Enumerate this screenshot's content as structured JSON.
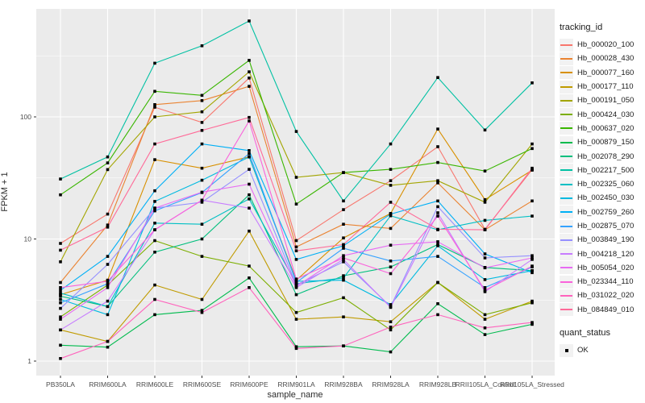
{
  "chart_data": {
    "type": "line",
    "title": "",
    "xlabel": "sample_name",
    "ylabel": "FPKM + 1",
    "y_scale": "log10",
    "y_ticks": [
      1,
      10,
      100
    ],
    "y_minor_ticks": [
      3.1623,
      31.623,
      316.23
    ],
    "ylim_log": [
      0.88,
      950
    ],
    "grid": "on",
    "legend_position": "right",
    "marker": "black-square",
    "categories": [
      "PB350LA",
      "RRIM600LA",
      "RRIM600LE",
      "RRIM600SE",
      "RRIM600PE",
      "RRIM901LA",
      "RRIM928BA",
      "RRIM928LA",
      "RRIM928LB",
      "RRII105LA_Control",
      "RRII105LA_Stressed"
    ],
    "series": [
      {
        "name": "Hb_000020_100",
        "color": "#F8766D",
        "values": [
          9.2,
          16,
          120,
          90,
          208,
          9.7,
          17.4,
          30,
          57,
          12,
          37
        ]
      },
      {
        "name": "Hb_000028_430",
        "color": "#EA8331",
        "values": [
          4.4,
          13,
          126,
          136,
          178,
          8.6,
          13.2,
          12.2,
          28.8,
          11.9,
          20.5
        ]
      },
      {
        "name": "Hb_000077_160",
        "color": "#D89000",
        "values": [
          3.5,
          4.6,
          44.6,
          38,
          47,
          4.6,
          10.2,
          16.2,
          79.5,
          21,
          36.6
        ]
      },
      {
        "name": "Hb_000177_110",
        "color": "#C09B00",
        "values": [
          1.8,
          1.45,
          4.2,
          3.2,
          11.6,
          2.2,
          2.3,
          2.1,
          4.4,
          2.2,
          3.1
        ]
      },
      {
        "name": "Hb_000191_050",
        "color": "#A3A500",
        "values": [
          6.5,
          37,
          100,
          110,
          234,
          32,
          35,
          27.5,
          30,
          20,
          60
        ]
      },
      {
        "name": "Hb_000424_030",
        "color": "#7CAE00",
        "values": [
          2.3,
          4.2,
          9.7,
          7.2,
          6.0,
          2.5,
          3.3,
          1.8,
          4.4,
          2.4,
          3.0
        ]
      },
      {
        "name": "Hb_000637_020",
        "color": "#39B600",
        "values": [
          23,
          42,
          162,
          150,
          290,
          19.3,
          35,
          37.2,
          42.3,
          36,
          55
        ]
      },
      {
        "name": "Hb_000879_150",
        "color": "#00BB4E",
        "values": [
          1.35,
          1.3,
          2.4,
          2.6,
          4.8,
          1.31,
          1.33,
          1.19,
          2.95,
          1.65,
          2.0
        ]
      },
      {
        "name": "Hb_002078_290",
        "color": "#00BF7D",
        "values": [
          3.4,
          2.8,
          7.8,
          10,
          23,
          3.5,
          5.0,
          5.9,
          9.0,
          5.85,
          5.5
        ]
      },
      {
        "name": "Hb_002217_500",
        "color": "#00C1A3",
        "values": [
          31,
          47,
          275,
          382,
          610,
          76,
          20.5,
          60,
          210,
          78,
          190
        ]
      },
      {
        "name": "Hb_002325_060",
        "color": "#00BFC4",
        "values": [
          3.6,
          2.8,
          13.5,
          13.2,
          21.3,
          4.3,
          4.8,
          15.5,
          11.9,
          14.2,
          15.4
        ]
      },
      {
        "name": "Hb_002450_030",
        "color": "#00BAE0",
        "values": [
          3.2,
          2.4,
          20.3,
          30.3,
          47,
          4.5,
          4.6,
          2.9,
          8.8,
          4.65,
          5.5
        ]
      },
      {
        "name": "Hb_002759_260",
        "color": "#00B0F6",
        "values": [
          3.8,
          7.2,
          24.8,
          60,
          53,
          6.8,
          8.8,
          16,
          20.5,
          7.55,
          5.3
        ]
      },
      {
        "name": "Hb_002875_070",
        "color": "#35A2FF",
        "values": [
          3.0,
          4.3,
          17,
          24,
          50,
          4.4,
          8.4,
          6.6,
          7.2,
          4.0,
          5.9
        ]
      },
      {
        "name": "Hb_003849_190",
        "color": "#9590FF",
        "values": [
          2.7,
          6.2,
          17.9,
          20,
          37.2,
          4.2,
          6.5,
          2.8,
          18.4,
          7.0,
          7.3
        ]
      },
      {
        "name": "Hb_004218_120",
        "color": "#C77CFF",
        "values": [
          1.8,
          3.1,
          11.9,
          20.8,
          17.9,
          4.0,
          6.8,
          2.75,
          16.4,
          3.7,
          6.8
        ]
      },
      {
        "name": "Hb_005054_020",
        "color": "#E76BF3",
        "values": [
          2.2,
          4.0,
          17.9,
          24.2,
          28.1,
          4.1,
          7.3,
          8.9,
          9.5,
          5.8,
          7.0
        ]
      },
      {
        "name": "Hb_023344_110",
        "color": "#FA62DB",
        "values": [
          4.0,
          4.5,
          11.9,
          20.8,
          92.6,
          4.7,
          7.0,
          5.2,
          15.4,
          3.8,
          6.0
        ]
      },
      {
        "name": "Hb_031022_020",
        "color": "#FF62BC",
        "values": [
          1.05,
          1.45,
          3.2,
          2.5,
          4.0,
          1.27,
          1.33,
          1.9,
          2.4,
          1.87,
          2.07
        ]
      },
      {
        "name": "Hb_084849_010",
        "color": "#FF6A98",
        "values": [
          8.1,
          12.5,
          60,
          77.5,
          99,
          8.0,
          9.0,
          20,
          12,
          11.9,
          38
        ]
      }
    ]
  },
  "axes": {
    "y_title": "FPKM + 1",
    "x_title": "sample_name"
  },
  "legend": {
    "tracking_title": "tracking_id",
    "quant_title": "quant_status",
    "quant_items": [
      {
        "label": "OK"
      }
    ]
  },
  "colors": {
    "panel_background": "#EBEBEB",
    "grid": "#FFFFFF",
    "tick_label": "#4D4D4D",
    "text": "#1A1A1A",
    "point": "#000000",
    "legend_key_background": "#F2F2F2"
  }
}
